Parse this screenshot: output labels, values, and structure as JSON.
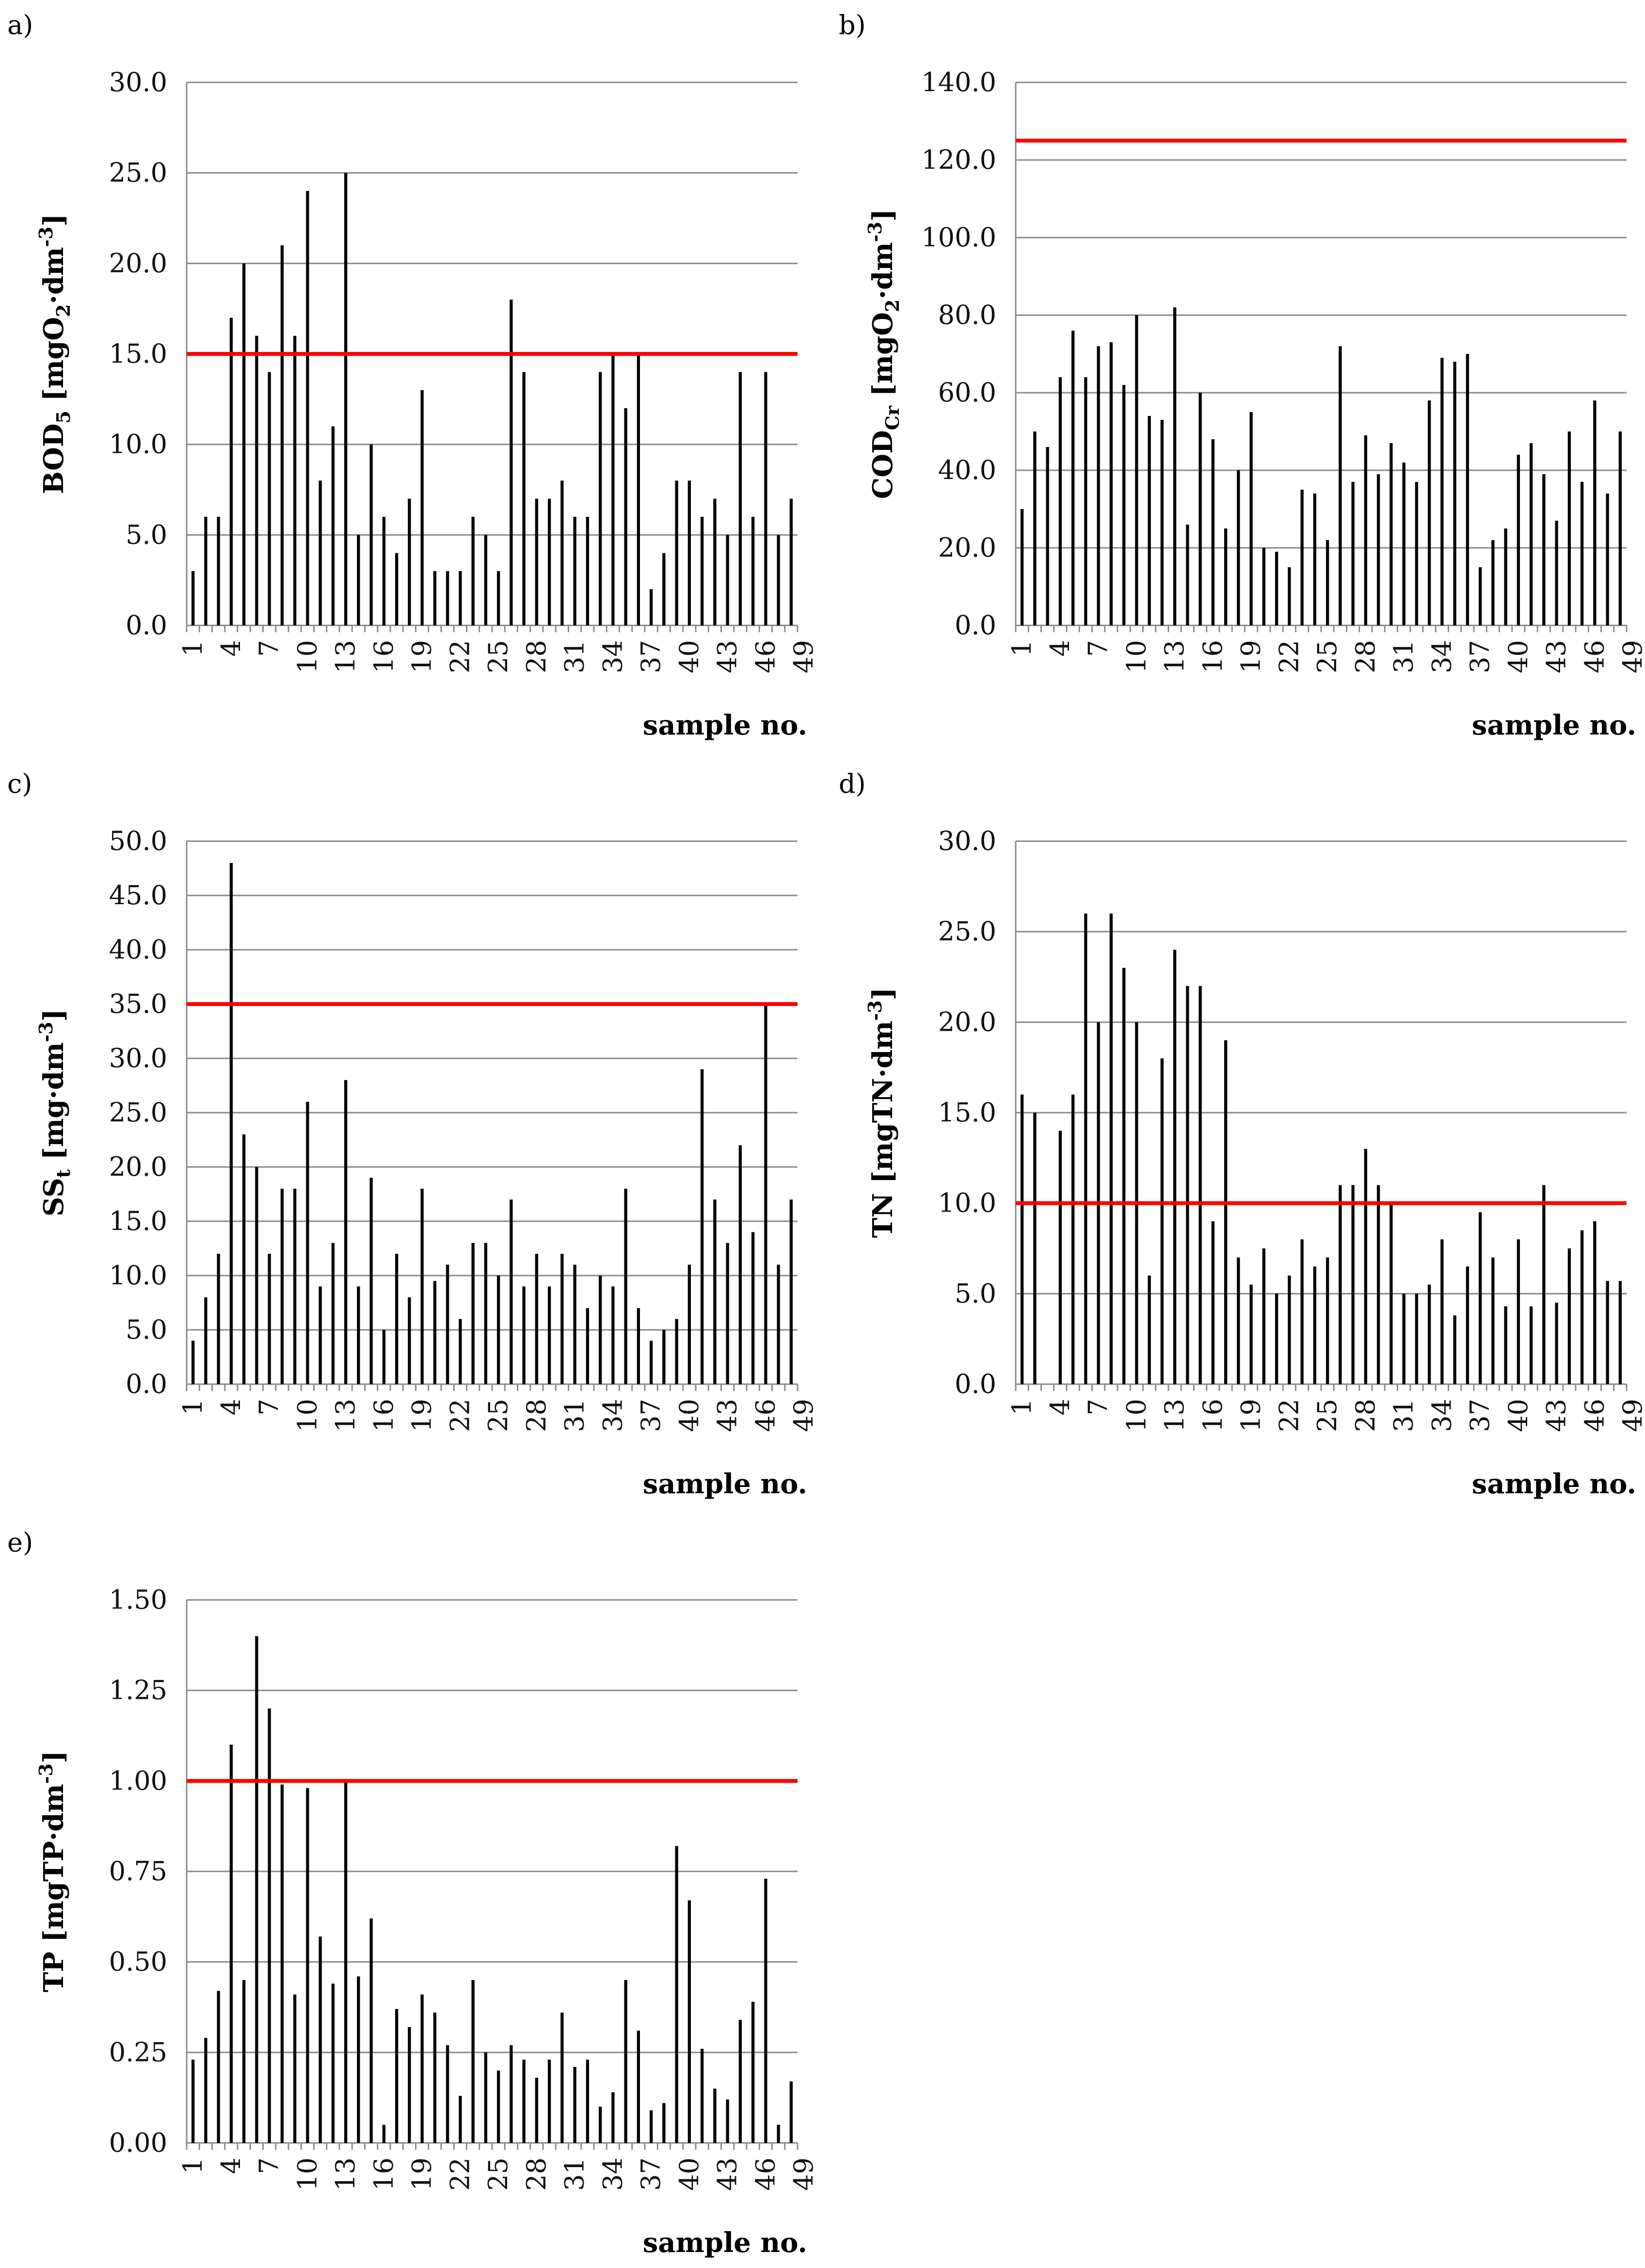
{
  "chart_data": [
    {
      "panel": "a)",
      "type": "bar",
      "ylabel_main": "BOD",
      "ylabel_sub": "5",
      "ylabel_unit": "[mgO",
      "ylabel_unit_sub": "2",
      "ylabel_unit_tail": "·dm",
      "ylabel_unit_sup": "-3",
      "ylabel_close": "]",
      "xlabel": "sample no.",
      "ylim": [
        0,
        30
      ],
      "yticks": [
        "0.0",
        "5.0",
        "10.0",
        "15.0",
        "20.0",
        "25.0",
        "30.0"
      ],
      "ytick_values": [
        0,
        5,
        10,
        15,
        20,
        25,
        30
      ],
      "x_tick_labels": [
        "1",
        "4",
        "7",
        "10",
        "13",
        "16",
        "19",
        "22",
        "25",
        "28",
        "31",
        "34",
        "37",
        "40",
        "43",
        "46",
        "49"
      ],
      "limit": 15,
      "limit_color": "#ff0000",
      "values": [
        3,
        6,
        6,
        17,
        20,
        16,
        14,
        21,
        16,
        24,
        8,
        11,
        25,
        5,
        10,
        6,
        4,
        7,
        13,
        3,
        3,
        3,
        6,
        5,
        3,
        18,
        14,
        7,
        7,
        8,
        6,
        6,
        14,
        15,
        12,
        15,
        2,
        4,
        8,
        8,
        6,
        7,
        5,
        14,
        6,
        14,
        5,
        7
      ]
    },
    {
      "panel": "b)",
      "type": "bar",
      "ylabel_main": "COD",
      "ylabel_sub": "Cr",
      "ylabel_unit": "[mgO",
      "ylabel_unit_sub": "2",
      "ylabel_unit_tail": "·dm",
      "ylabel_unit_sup": "-3",
      "ylabel_close": "]",
      "xlabel": "sample no.",
      "ylim": [
        0,
        140
      ],
      "yticks": [
        "0.0",
        "20.0",
        "40.0",
        "60.0",
        "80.0",
        "100.0",
        "120.0",
        "140.0"
      ],
      "ytick_values": [
        0,
        20,
        40,
        60,
        80,
        100,
        120,
        140
      ],
      "x_tick_labels": [
        "1",
        "4",
        "7",
        "10",
        "13",
        "16",
        "19",
        "22",
        "25",
        "28",
        "31",
        "34",
        "37",
        "40",
        "43",
        "46",
        "49"
      ],
      "limit": 125,
      "limit_color": "#ff0000",
      "values": [
        30,
        50,
        46,
        64,
        76,
        64,
        72,
        73,
        62,
        80,
        54,
        53,
        82,
        26,
        60,
        48,
        25,
        40,
        55,
        20,
        19,
        15,
        35,
        34,
        22,
        72,
        37,
        49,
        39,
        47,
        42,
        37,
        58,
        69,
        68,
        70,
        15,
        22,
        25,
        44,
        47,
        39,
        27,
        50,
        37,
        58,
        34,
        50
      ]
    },
    {
      "panel": "c)",
      "type": "bar",
      "ylabel_main": "SS",
      "ylabel_sub": "t",
      "ylabel_unit": "[mg",
      "ylabel_unit_sub": "",
      "ylabel_unit_tail": "·dm",
      "ylabel_unit_sup": "-3",
      "ylabel_close": "]",
      "xlabel": "sample no.",
      "ylim": [
        0,
        50
      ],
      "yticks": [
        "0.0",
        "5.0",
        "10.0",
        "15.0",
        "20.0",
        "25.0",
        "30.0",
        "35.0",
        "40.0",
        "45.0",
        "50.0"
      ],
      "ytick_values": [
        0,
        5,
        10,
        15,
        20,
        25,
        30,
        35,
        40,
        45,
        50
      ],
      "x_tick_labels": [
        "1",
        "4",
        "7",
        "10",
        "13",
        "16",
        "19",
        "22",
        "25",
        "28",
        "31",
        "34",
        "37",
        "40",
        "43",
        "46",
        "49"
      ],
      "limit": 35,
      "limit_color": "#ff0000",
      "values": [
        4,
        8,
        12,
        48,
        23,
        20,
        12,
        18,
        18,
        26,
        9,
        13,
        28,
        9,
        19,
        5,
        12,
        8,
        18,
        9.5,
        11,
        6,
        13,
        13,
        10,
        17,
        9,
        12,
        9,
        12,
        11,
        7,
        10,
        9,
        18,
        7,
        4,
        5,
        6,
        11,
        29,
        17,
        13,
        22,
        14,
        35,
        11,
        17
      ]
    },
    {
      "panel": "d)",
      "type": "bar",
      "ylabel_main": "TN",
      "ylabel_sub": "",
      "ylabel_unit": "[mgTN",
      "ylabel_unit_sub": "",
      "ylabel_unit_tail": "·dm",
      "ylabel_unit_sup": "-3",
      "ylabel_close": "]",
      "xlabel": "sample no.",
      "ylim": [
        0,
        30
      ],
      "yticks": [
        "0.0",
        "5.0",
        "10.0",
        "15.0",
        "20.0",
        "25.0",
        "30.0"
      ],
      "ytick_values": [
        0,
        5,
        10,
        15,
        20,
        25,
        30
      ],
      "x_tick_labels": [
        "1",
        "4",
        "7",
        "10",
        "13",
        "16",
        "19",
        "22",
        "25",
        "28",
        "31",
        "34",
        "37",
        "40",
        "43",
        "46",
        "49"
      ],
      "limit": 10,
      "limit_color": "#ff0000",
      "values": [
        16,
        15,
        0,
        14,
        16,
        26,
        20,
        26,
        23,
        20,
        6,
        18,
        24,
        22,
        22,
        9,
        19,
        7,
        5.5,
        7.5,
        5,
        6,
        8,
        6.5,
        7,
        11,
        11,
        13,
        11,
        10,
        5,
        5,
        5.5,
        8,
        3.8,
        6.5,
        9.5,
        7,
        4.3,
        8,
        4.3,
        11,
        4.5,
        7.5,
        8.5,
        9,
        5.7,
        5.7
      ]
    },
    {
      "panel": "e)",
      "type": "bar",
      "ylabel_main": "TP",
      "ylabel_sub": "",
      "ylabel_unit": "[mgTP",
      "ylabel_unit_sub": "",
      "ylabel_unit_tail": "·dm",
      "ylabel_unit_sup": "-3",
      "ylabel_close": "]",
      "xlabel": "sample no.",
      "ylim": [
        0,
        1.5
      ],
      "yticks": [
        "0.00",
        "0.25",
        "0.50",
        "0.75",
        "1.00",
        "1.25",
        "1.50"
      ],
      "ytick_values": [
        0,
        0.25,
        0.5,
        0.75,
        1.0,
        1.25,
        1.5
      ],
      "x_tick_labels": [
        "1",
        "4",
        "7",
        "10",
        "13",
        "16",
        "19",
        "22",
        "25",
        "28",
        "31",
        "34",
        "37",
        "40",
        "43",
        "46",
        "49"
      ],
      "limit": 1.0,
      "limit_color": "#ff0000",
      "values": [
        0.23,
        0.29,
        0.42,
        1.1,
        0.45,
        1.4,
        1.2,
        0.99,
        0.41,
        0.98,
        0.57,
        0.44,
        1.0,
        0.46,
        0.62,
        0.05,
        0.37,
        0.32,
        0.41,
        0.36,
        0.27,
        0.13,
        0.45,
        0.25,
        0.2,
        0.27,
        0.23,
        0.18,
        0.23,
        0.36,
        0.21,
        0.23,
        0.1,
        0.14,
        0.45,
        0.31,
        0.09,
        0.11,
        0.82,
        0.67,
        0.26,
        0.15,
        0.12,
        0.34,
        0.39,
        0.73,
        0.05,
        0.17
      ]
    }
  ]
}
